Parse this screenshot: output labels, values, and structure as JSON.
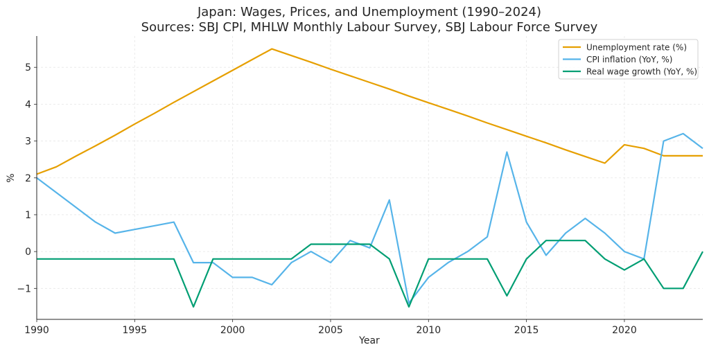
{
  "chart_data": {
    "type": "line",
    "title": "Japan: Wages, Prices, and Unemployment (1990–2024)",
    "subtitle": "Sources: SBJ CPI, MHLW Monthly Labour Survey, SBJ Labour Force Survey",
    "xlabel": "Year",
    "ylabel": "%",
    "xlim": [
      1990,
      2024
    ],
    "ylim": [
      -1.84,
      5.85
    ],
    "xticks": [
      1990,
      1995,
      2000,
      2005,
      2010,
      2015,
      2020
    ],
    "yticks": [
      -1,
      0,
      1,
      2,
      3,
      4,
      5
    ],
    "grid": true,
    "legend_position": "top-right",
    "x": [
      1990,
      1991,
      1992,
      1993,
      1994,
      1995,
      1996,
      1997,
      1998,
      1999,
      2000,
      2001,
      2002,
      2003,
      2004,
      2005,
      2006,
      2007,
      2008,
      2009,
      2010,
      2011,
      2012,
      2013,
      2014,
      2015,
      2016,
      2017,
      2018,
      2019,
      2020,
      2021,
      2022,
      2023,
      2024
    ],
    "series": [
      {
        "name": "Unemployment rate (%)",
        "color": "#E69F00",
        "values": [
          2.1,
          2.3,
          2.59,
          2.87,
          3.16,
          3.46,
          3.75,
          4.05,
          4.34,
          4.63,
          4.92,
          5.21,
          5.5,
          5.32,
          5.14,
          4.95,
          4.77,
          4.59,
          4.41,
          4.22,
          4.04,
          3.86,
          3.68,
          3.49,
          3.31,
          3.13,
          2.95,
          2.76,
          2.58,
          2.4,
          2.9,
          2.8,
          2.6,
          2.6,
          2.6
        ]
      },
      {
        "name": "CPI inflation (YoY, %)",
        "color": "#56B4E9",
        "values": [
          2.0,
          1.6,
          1.2,
          0.8,
          0.5,
          0.6,
          0.7,
          0.8,
          -0.3,
          -0.3,
          -0.7,
          -0.7,
          -0.9,
          -0.3,
          0.0,
          -0.3,
          0.3,
          0.1,
          1.4,
          -1.4,
          -0.7,
          -0.3,
          0.0,
          0.4,
          2.7,
          0.8,
          -0.1,
          0.5,
          0.9,
          0.5,
          0.0,
          -0.2,
          3.0,
          3.2,
          2.8
        ]
      },
      {
        "name": "Real wage growth (YoY, %)",
        "color": "#009E73",
        "values": [
          -0.2,
          -0.2,
          -0.2,
          -0.2,
          -0.2,
          -0.2,
          -0.2,
          -0.2,
          -1.5,
          -0.2,
          -0.2,
          -0.2,
          -0.2,
          -0.2,
          0.2,
          0.2,
          0.2,
          0.2,
          -0.2,
          -1.5,
          -0.2,
          -0.2,
          -0.2,
          -0.2,
          -1.2,
          -0.2,
          0.3,
          0.3,
          0.3,
          -0.2,
          -0.5,
          -0.2,
          -1.0,
          -1.0,
          0.0
        ]
      }
    ]
  }
}
